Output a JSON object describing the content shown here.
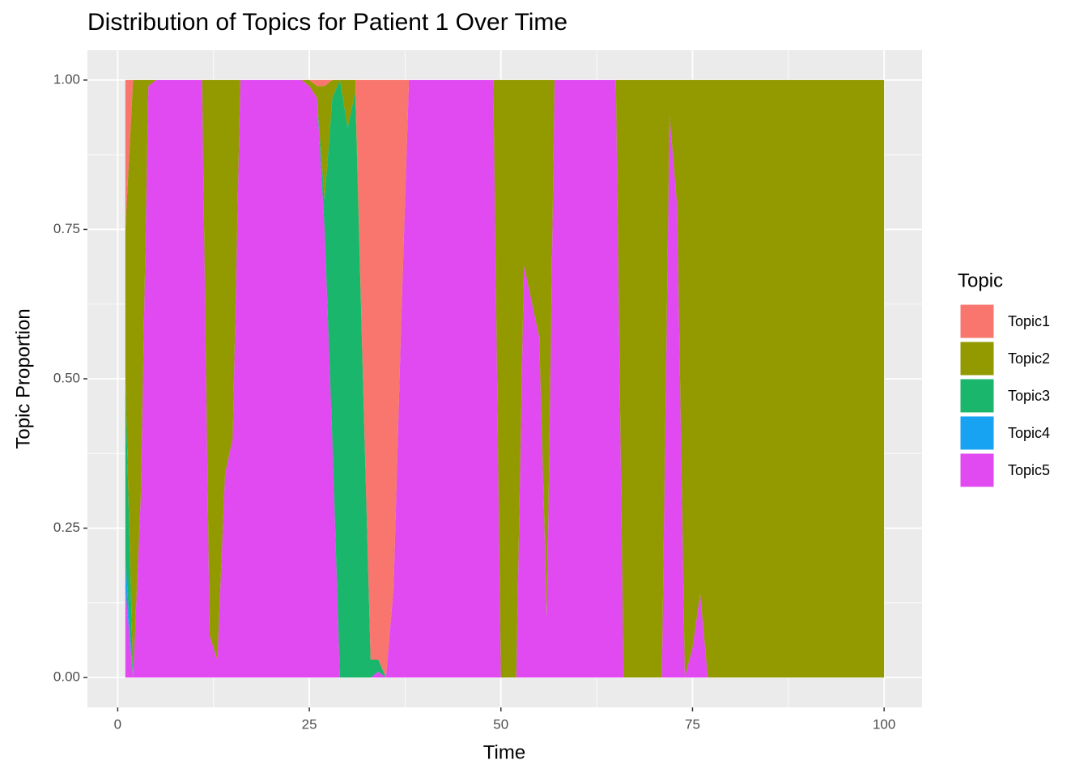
{
  "chart_data": {
    "type": "area",
    "stacked": true,
    "title": "Distribution of Topics for Patient 1 Over Time",
    "x_label": "Time",
    "y_label": "Topic Proportion",
    "legend_title": "Topic",
    "legend": "right",
    "grid": true,
    "x": [
      1,
      2,
      3,
      4,
      5,
      6,
      7,
      8,
      9,
      10,
      11,
      12,
      13,
      14,
      15,
      16,
      17,
      18,
      19,
      20,
      21,
      22,
      23,
      24,
      25,
      26,
      27,
      28,
      29,
      30,
      31,
      32,
      33,
      34,
      35,
      36,
      37,
      38,
      39,
      40,
      41,
      42,
      43,
      44,
      45,
      46,
      47,
      48,
      49,
      50,
      51,
      52,
      53,
      54,
      55,
      56,
      57,
      58,
      59,
      60,
      61,
      62,
      63,
      64,
      65,
      66,
      67,
      68,
      69,
      70,
      71,
      72,
      73,
      74,
      75,
      76,
      77,
      78,
      79,
      80,
      81,
      82,
      83,
      84,
      85,
      86,
      87,
      88,
      89,
      90,
      91,
      92,
      93,
      94,
      95,
      96,
      97,
      98,
      99,
      100
    ],
    "series": [
      {
        "name": "Topic1",
        "color": "#F8766D",
        "values": [
          0.25,
          0,
          0,
          0,
          0,
          0,
          0,
          0,
          0,
          0,
          0,
          0,
          0,
          0,
          0,
          0,
          0,
          0,
          0,
          0,
          0,
          0,
          0,
          0,
          0,
          0.01,
          0.01,
          0,
          0,
          0,
          0,
          0.5,
          0.97,
          0.97,
          1,
          0.85,
          0.4,
          0,
          0,
          0,
          0,
          0,
          0,
          0,
          0,
          0,
          0,
          0,
          0,
          0,
          0,
          0,
          0,
          0,
          0,
          0,
          0,
          0,
          0,
          0,
          0,
          0,
          0,
          0,
          0,
          0,
          0,
          0,
          0,
          0,
          0,
          0,
          0,
          0,
          0,
          0,
          0,
          0,
          0,
          0,
          0,
          0,
          0,
          0,
          0,
          0,
          0,
          0,
          0,
          0,
          0,
          0,
          0,
          0,
          0,
          0,
          0,
          0,
          0,
          0
        ]
      },
      {
        "name": "Topic2",
        "color": "#939A00",
        "values": [
          0.25,
          1,
          0.7,
          0.01,
          0,
          0,
          0,
          0,
          0,
          0,
          0,
          0.93,
          0.97,
          0.66,
          0.6,
          0,
          0,
          0,
          0,
          0,
          0,
          0,
          0,
          0,
          0.01,
          0.02,
          0.19,
          0.03,
          0,
          0.08,
          0.02,
          0,
          0,
          0,
          0,
          0,
          0,
          0,
          0,
          0,
          0,
          0,
          0,
          0,
          0,
          0,
          0,
          0,
          0,
          1,
          1,
          1,
          0.31,
          0.37,
          0.43,
          0.9,
          0,
          0,
          0,
          0,
          0,
          0,
          0,
          0,
          0,
          1,
          1,
          1,
          1,
          1,
          1,
          0.06,
          0.21,
          1,
          0.95,
          0.86,
          1,
          1,
          1,
          1,
          1,
          1,
          1,
          1,
          1,
          1,
          1,
          1,
          1,
          1,
          1,
          1,
          1,
          1,
          1,
          1,
          1,
          1,
          1,
          1
        ]
      },
      {
        "name": "Topic3",
        "color": "#1AB66B",
        "values": [
          0.3,
          0,
          0,
          0,
          0,
          0,
          0,
          0,
          0,
          0,
          0,
          0,
          0,
          0,
          0,
          0,
          0,
          0,
          0,
          0,
          0,
          0,
          0,
          0,
          0,
          0,
          0.05,
          0.57,
          1,
          0.92,
          0.98,
          0.5,
          0.03,
          0.02,
          0,
          0,
          0,
          0,
          0,
          0,
          0,
          0,
          0,
          0,
          0,
          0,
          0,
          0,
          0,
          0,
          0,
          0,
          0,
          0,
          0,
          0,
          0,
          0,
          0,
          0,
          0,
          0,
          0,
          0,
          0,
          0,
          0,
          0,
          0,
          0,
          0,
          0,
          0,
          0,
          0,
          0,
          0,
          0,
          0,
          0,
          0,
          0,
          0,
          0,
          0,
          0,
          0,
          0,
          0,
          0,
          0,
          0,
          0,
          0,
          0,
          0,
          0,
          0,
          0,
          0
        ]
      },
      {
        "name": "Topic4",
        "color": "#17A2F2",
        "values": [
          0.05,
          0,
          0,
          0,
          0,
          0,
          0,
          0,
          0,
          0,
          0,
          0,
          0,
          0,
          0,
          0,
          0,
          0,
          0,
          0,
          0,
          0,
          0,
          0,
          0,
          0,
          0,
          0,
          0,
          0,
          0,
          0,
          0,
          0,
          0,
          0,
          0,
          0,
          0,
          0,
          0,
          0,
          0,
          0,
          0,
          0,
          0,
          0,
          0,
          0,
          0,
          0,
          0,
          0,
          0,
          0,
          0,
          0,
          0,
          0,
          0,
          0,
          0,
          0,
          0,
          0,
          0,
          0,
          0,
          0,
          0,
          0,
          0,
          0,
          0,
          0,
          0,
          0,
          0,
          0,
          0,
          0,
          0,
          0,
          0,
          0,
          0,
          0,
          0,
          0,
          0,
          0,
          0,
          0,
          0,
          0,
          0,
          0,
          0,
          0
        ]
      },
      {
        "name": "Topic5",
        "color": "#E04AF0",
        "values": [
          0.15,
          0,
          0.3,
          0.99,
          1,
          1,
          1,
          1,
          1,
          1,
          1,
          0.07,
          0.03,
          0.34,
          0.4,
          1,
          1,
          1,
          1,
          1,
          1,
          1,
          1,
          1,
          0.99,
          0.97,
          0.75,
          0.4,
          0,
          0,
          0,
          0,
          0,
          0.01,
          0,
          0.15,
          0.6,
          1,
          1,
          1,
          1,
          1,
          1,
          1,
          1,
          1,
          1,
          1,
          1,
          0,
          0,
          0,
          0.69,
          0.63,
          0.57,
          0.1,
          1,
          1,
          1,
          1,
          1,
          1,
          1,
          1,
          1,
          0,
          0,
          0,
          0,
          0,
          0,
          0.94,
          0.79,
          0,
          0.05,
          0.14,
          0,
          0,
          0,
          0,
          0,
          0,
          0,
          0,
          0,
          0,
          0,
          0,
          0,
          0,
          0,
          0,
          0,
          0,
          0,
          0,
          0,
          0,
          0,
          0
        ]
      }
    ],
    "xlim": [
      -3.95,
      104.95
    ],
    "xticks": [
      0,
      25,
      50,
      75,
      100
    ],
    "ylim": [
      -0.05,
      1.05
    ],
    "yticks": [
      {
        "value": 0,
        "label": "0.00"
      },
      {
        "value": 0.25,
        "label": "0.25"
      },
      {
        "value": 0.5,
        "label": "0.50"
      },
      {
        "value": 0.75,
        "label": "0.75"
      },
      {
        "value": 1,
        "label": "1.00"
      }
    ]
  }
}
